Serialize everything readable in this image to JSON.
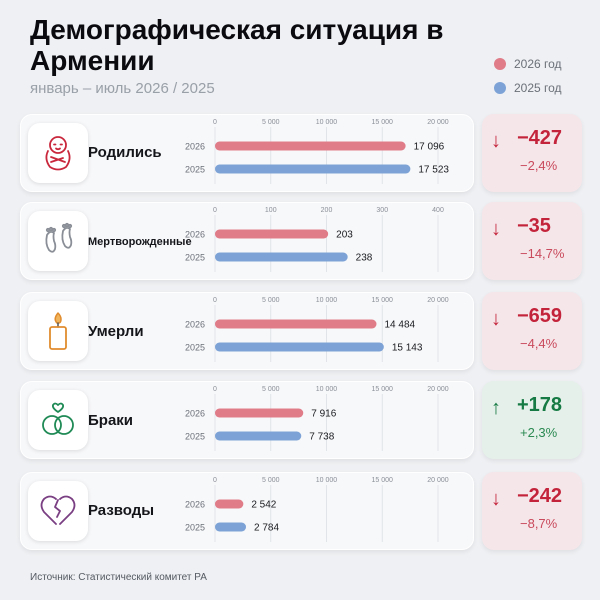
{
  "header": {
    "title": "Демографическая ситуация в Армении",
    "subtitle": "январь – июль 2026 / 2025"
  },
  "legend": [
    {
      "label": "2026 год",
      "color": "#e07b88"
    },
    {
      "label": "2025 год",
      "color": "#7da3d6"
    }
  ],
  "colors": {
    "bar_2026": "#e07b88",
    "bar_2025": "#7da3d6",
    "negative": "#c4243b",
    "positive": "#167a44",
    "panel_bg": "#f7f8fa"
  },
  "icons": [
    "baby-icon",
    "footprints-icon",
    "candle-icon",
    "rings-icon",
    "broken-heart-icon"
  ],
  "chart_data": [
    {
      "type": "bar",
      "category": "Родились",
      "series": [
        {
          "name": "2026",
          "value": 17096,
          "label": "17 096"
        },
        {
          "name": "2025",
          "value": 17523,
          "label": "17 523"
        }
      ],
      "xlim": [
        0,
        20000
      ],
      "ticks": [
        "0",
        "5 000",
        "10 000",
        "15 000",
        "20 000"
      ],
      "tick_values": [
        0,
        5000,
        10000,
        15000,
        20000
      ],
      "change": {
        "value": "−427",
        "percent": "−2,4%",
        "direction": "down"
      }
    },
    {
      "type": "bar",
      "category": "Мертворожденные",
      "series": [
        {
          "name": "2026",
          "value": 203,
          "label": "203"
        },
        {
          "name": "2025",
          "value": 238,
          "label": "238"
        }
      ],
      "xlim": [
        0,
        400
      ],
      "ticks": [
        "0",
        "100",
        "200",
        "300",
        "400"
      ],
      "tick_values": [
        0,
        100,
        200,
        300,
        400
      ],
      "change": {
        "value": "−35",
        "percent": "−14,7%",
        "direction": "down"
      }
    },
    {
      "type": "bar",
      "category": "Умерли",
      "series": [
        {
          "name": "2026",
          "value": 14484,
          "label": "14 484"
        },
        {
          "name": "2025",
          "value": 15143,
          "label": "15 143"
        }
      ],
      "xlim": [
        0,
        20000
      ],
      "ticks": [
        "0",
        "5 000",
        "10 000",
        "15 000",
        "20 000"
      ],
      "tick_values": [
        0,
        5000,
        10000,
        15000,
        20000
      ],
      "change": {
        "value": "−659",
        "percent": "−4,4%",
        "direction": "down"
      }
    },
    {
      "type": "bar",
      "category": "Браки",
      "series": [
        {
          "name": "2026",
          "value": 7916,
          "label": "7 916"
        },
        {
          "name": "2025",
          "value": 7738,
          "label": "7 738"
        }
      ],
      "xlim": [
        0,
        20000
      ],
      "ticks": [
        "0",
        "5 000",
        "10 000",
        "15 000",
        "20 000"
      ],
      "tick_values": [
        0,
        5000,
        10000,
        15000,
        20000
      ],
      "change": {
        "value": "+178",
        "percent": "+2,3%",
        "direction": "up"
      }
    },
    {
      "type": "bar",
      "category": "Разводы",
      "series": [
        {
          "name": "2026",
          "value": 2542,
          "label": "2 542"
        },
        {
          "name": "2025",
          "value": 2784,
          "label": "2 784"
        }
      ],
      "xlim": [
        0,
        20000
      ],
      "ticks": [
        "0",
        "5 000",
        "10 000",
        "15 000",
        "20 000"
      ],
      "tick_values": [
        0,
        5000,
        10000,
        15000,
        20000
      ],
      "change": {
        "value": "−242",
        "percent": "−8,7%",
        "direction": "down"
      }
    }
  ],
  "footer": {
    "source": "Источник: Статистический комитет РА"
  }
}
